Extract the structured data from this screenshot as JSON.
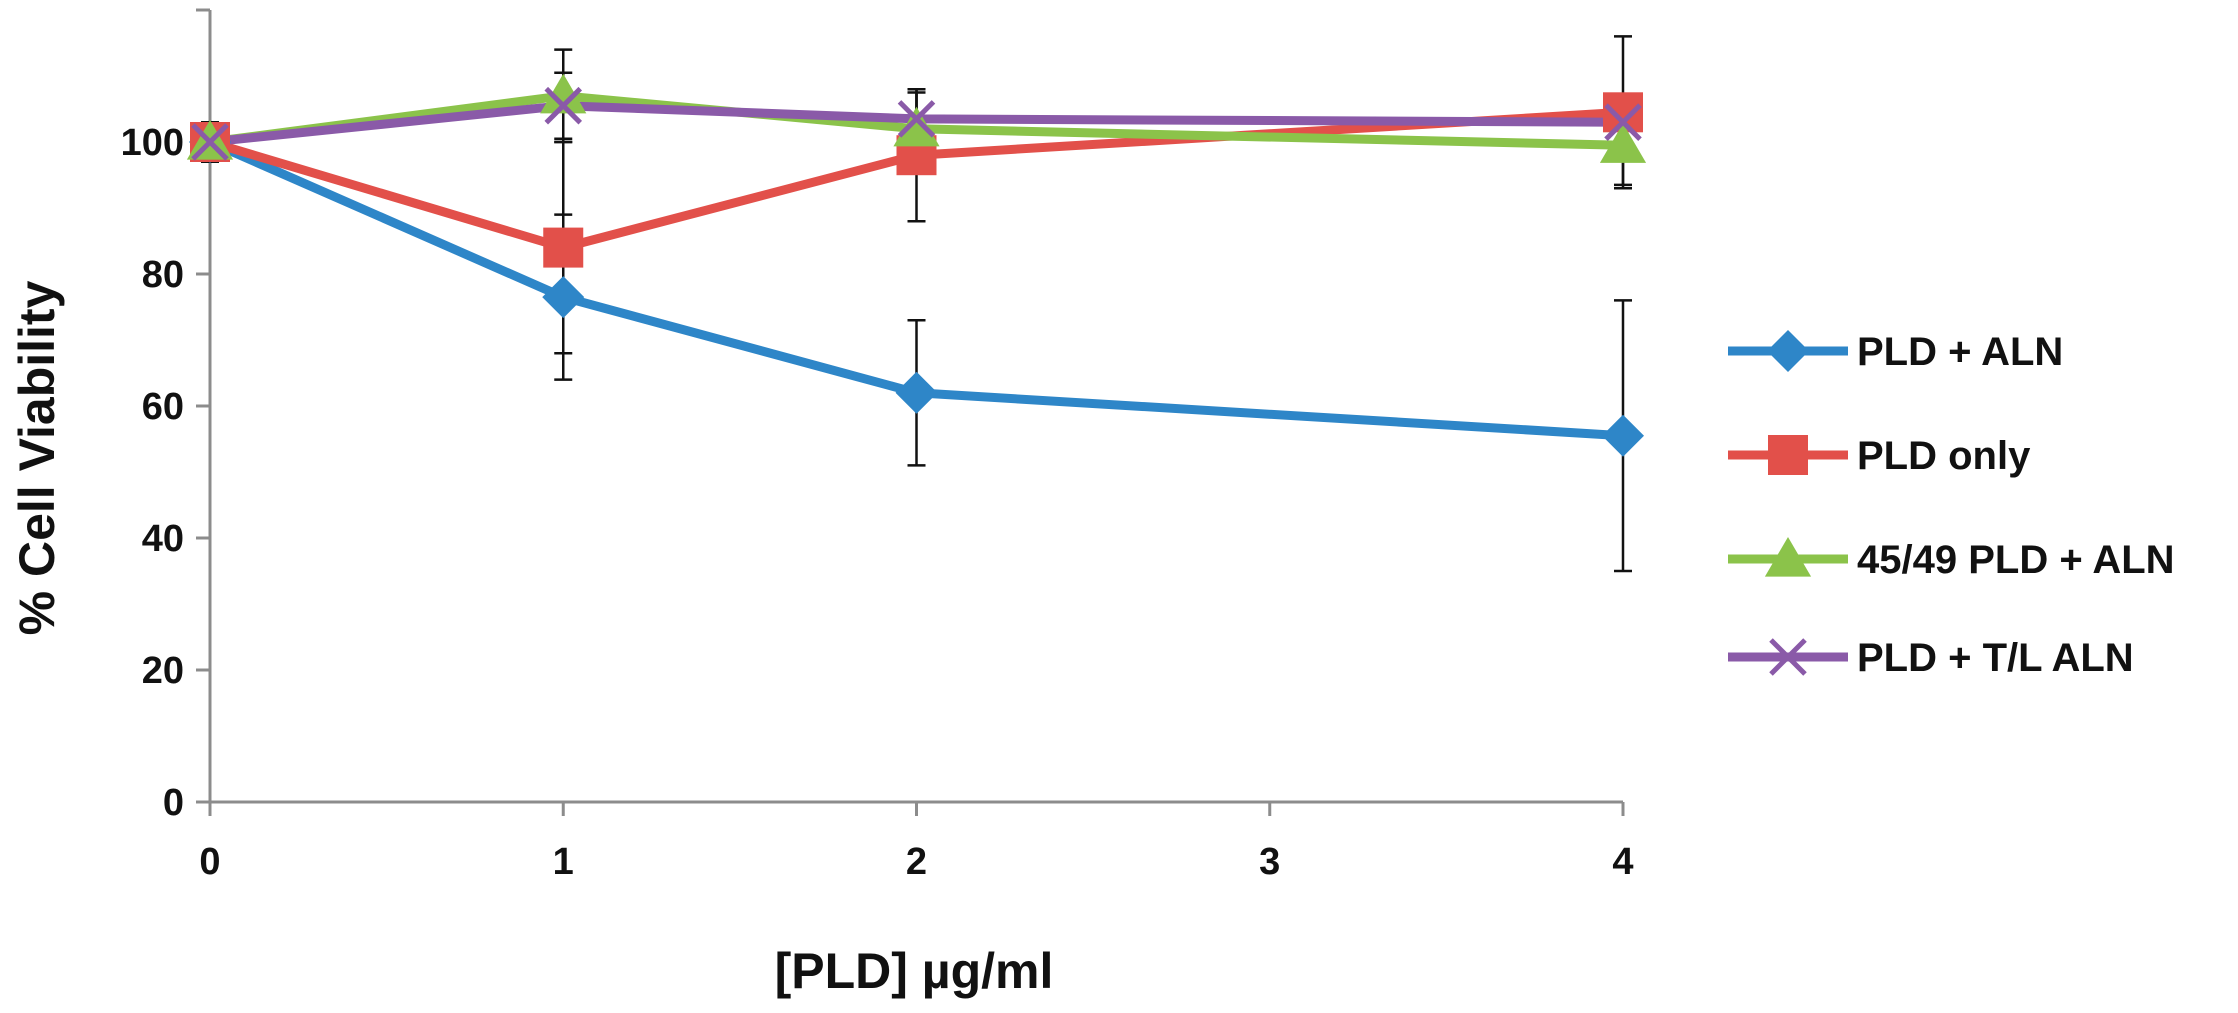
{
  "chart_data": {
    "type": "line",
    "title": "",
    "xlabel": "[PLD] µg/ml",
    "ylabel": "% Cell Viability",
    "xlim": [
      0,
      4
    ],
    "ylim": [
      0,
      120
    ],
    "xticks": [
      0,
      1,
      2,
      3,
      4
    ],
    "yticks": [
      0,
      20,
      40,
      60,
      80,
      100
    ],
    "x_tick_labels": [
      "0",
      "1",
      "2",
      "3",
      "4"
    ],
    "y_tick_labels": [
      "0",
      "20",
      "40",
      "60",
      "80",
      "100"
    ],
    "grid": false,
    "legend_position": "right",
    "series": [
      {
        "name": "PLD + ALN",
        "color": "#2E86C8",
        "marker": "diamond",
        "x": [
          0,
          1,
          2,
          4
        ],
        "values": [
          100,
          76.5,
          62,
          55.5
        ],
        "error": [
          3,
          12.5,
          11,
          20.5
        ]
      },
      {
        "name": "PLD only",
        "color": "#E2504A",
        "marker": "square",
        "x": [
          0,
          1,
          2,
          4
        ],
        "values": [
          100,
          84,
          98,
          104.5
        ],
        "error": [
          3,
          16,
          10,
          11.5
        ]
      },
      {
        "name": "45/49 PLD + ALN",
        "color": "#8BC34A",
        "marker": "triangle",
        "x": [
          0,
          1,
          2,
          4
        ],
        "values": [
          100,
          107,
          102,
          99.5
        ],
        "error": [
          3,
          7,
          6,
          6
        ]
      },
      {
        "name": "PLD + T/L ALN",
        "color": "#8A5AA8",
        "marker": "x",
        "x": [
          0,
          1,
          2,
          4
        ],
        "values": [
          100,
          105.5,
          103.5,
          103
        ],
        "error": [
          3,
          5,
          4,
          4
        ]
      }
    ]
  }
}
